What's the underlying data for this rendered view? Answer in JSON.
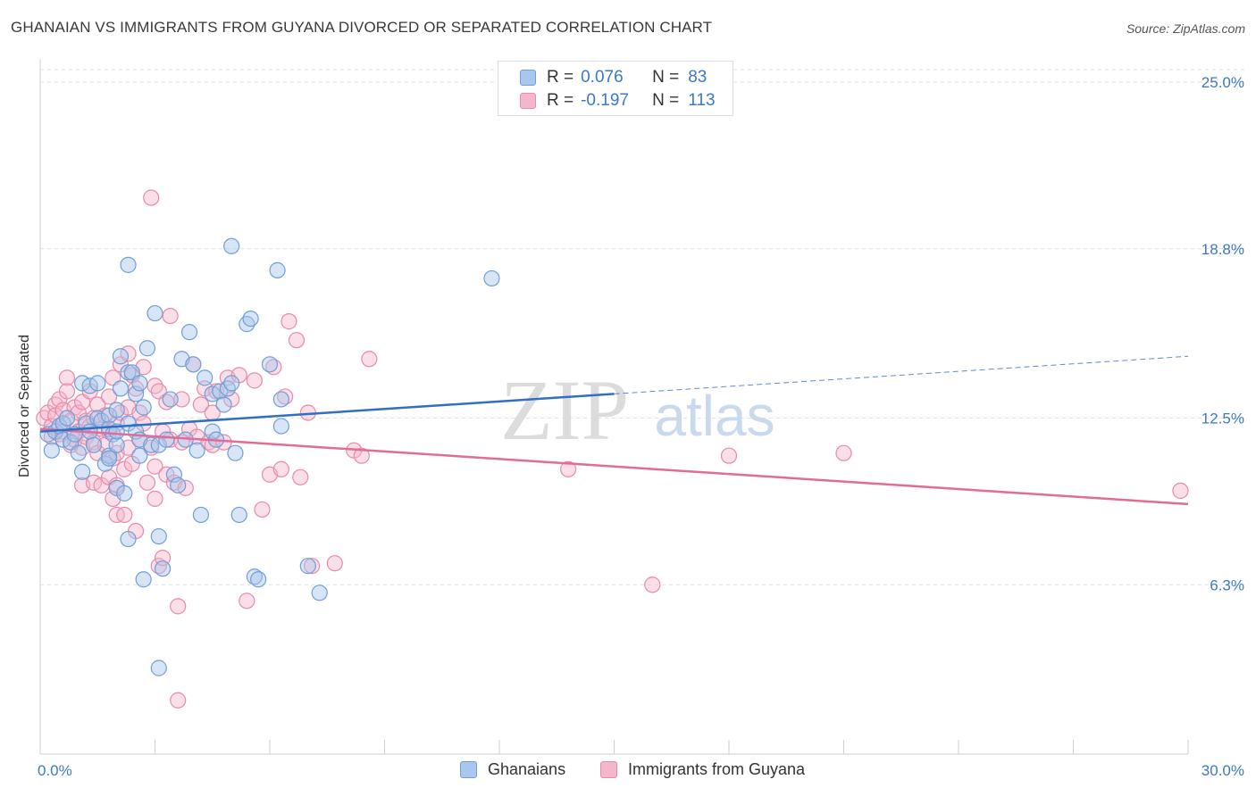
{
  "header": {
    "title": "GHANAIAN VS IMMIGRANTS FROM GUYANA DIVORCED OR SEPARATED CORRELATION CHART",
    "source": "Source: ZipAtlas.com"
  },
  "watermark": {
    "part1": "ZIP",
    "part2": "atlas"
  },
  "colors": {
    "blue_fill": "#a9c6ec",
    "blue_stroke": "#6f9fd8",
    "blue_line": "#2f6fc6",
    "pink_fill": "#f4b6cb",
    "pink_stroke": "#e88aaa",
    "pink_line": "#e26b97",
    "value_text": "#3b78c9"
  },
  "legend_top": [
    {
      "r_label": "R =",
      "r_value": "0.076",
      "n_label": "N =",
      "n_value": "83"
    },
    {
      "r_label": "R =",
      "r_value": "-0.197",
      "n_label": "N =",
      "n_value": "113"
    }
  ],
  "legend_bottom": [
    "Ghanaians",
    "Immigrants from Guyana"
  ],
  "chart_data": {
    "type": "scatter",
    "title": "GHANAIAN VS IMMIGRANTS FROM GUYANA DIVORCED OR SEPARATED CORRELATION CHART",
    "xlabel": "",
    "ylabel": "Divorced or Separated",
    "xlim": [
      0,
      30
    ],
    "ylim": [
      0,
      25.6
    ],
    "x_tick_labels": [
      "0.0%",
      "30.0%"
    ],
    "y_ticks": [
      6.3,
      12.5,
      18.8,
      25.0
    ],
    "y_tick_labels": [
      "6.3%",
      "12.5%",
      "18.8%",
      "25.0%"
    ],
    "grid": "horizontal dashed",
    "legend_position": "top-center",
    "series": [
      {
        "name": "Ghanaians",
        "r": 0.076,
        "n": 83,
        "trend": {
          "x": [
            0,
            15
          ],
          "y": [
            12.0,
            13.4
          ],
          "dashed_extension_to": [
            30,
            14.8
          ]
        },
        "points": [
          [
            0.2,
            11.9
          ],
          [
            0.3,
            11.3
          ],
          [
            0.4,
            12.0
          ],
          [
            0.5,
            12.2
          ],
          [
            0.6,
            11.7
          ],
          [
            0.6,
            12.3
          ],
          [
            0.7,
            12.5
          ],
          [
            0.8,
            11.6
          ],
          [
            0.9,
            11.9
          ],
          [
            1.0,
            11.2
          ],
          [
            1.1,
            13.8
          ],
          [
            1.1,
            10.5
          ],
          [
            1.2,
            12.3
          ],
          [
            1.3,
            12.0
          ],
          [
            1.4,
            11.5
          ],
          [
            1.3,
            13.7
          ],
          [
            1.5,
            13.8
          ],
          [
            1.5,
            12.5
          ],
          [
            1.6,
            12.4
          ],
          [
            1.7,
            10.8
          ],
          [
            1.8,
            12.6
          ],
          [
            1.8,
            12.1
          ],
          [
            1.8,
            11.1
          ],
          [
            1.9,
            11.9
          ],
          [
            2.0,
            11.5
          ],
          [
            2.0,
            12.0
          ],
          [
            2.0,
            12.8
          ],
          [
            1.8,
            11.0
          ],
          [
            2.0,
            9.9
          ],
          [
            2.1,
            14.8
          ],
          [
            2.1,
            13.6
          ],
          [
            2.2,
            9.7
          ],
          [
            2.3,
            14.2
          ],
          [
            2.3,
            12.3
          ],
          [
            2.3,
            8.0
          ],
          [
            2.3,
            18.2
          ],
          [
            2.4,
            14.2
          ],
          [
            2.5,
            13.4
          ],
          [
            2.5,
            12.0
          ],
          [
            2.6,
            13.8
          ],
          [
            2.6,
            11.7
          ],
          [
            2.6,
            11.1
          ],
          [
            2.7,
            12.9
          ],
          [
            2.7,
            6.5
          ],
          [
            2.8,
            15.1
          ],
          [
            2.9,
            11.5
          ],
          [
            3.0,
            16.4
          ],
          [
            3.1,
            11.5
          ],
          [
            3.1,
            8.1
          ],
          [
            3.1,
            3.2
          ],
          [
            3.2,
            6.9
          ],
          [
            3.3,
            11.7
          ],
          [
            3.4,
            13.2
          ],
          [
            3.5,
            10.4
          ],
          [
            3.6,
            10.0
          ],
          [
            3.7,
            14.7
          ],
          [
            3.8,
            11.7
          ],
          [
            3.9,
            15.7
          ],
          [
            4.0,
            14.5
          ],
          [
            4.1,
            11.3
          ],
          [
            4.2,
            8.9
          ],
          [
            4.3,
            14.0
          ],
          [
            4.5,
            13.4
          ],
          [
            4.5,
            12.0
          ],
          [
            4.6,
            11.7
          ],
          [
            4.7,
            13.5
          ],
          [
            4.8,
            13.0
          ],
          [
            4.9,
            13.6
          ],
          [
            5.0,
            13.8
          ],
          [
            5.0,
            18.9
          ],
          [
            5.1,
            11.2
          ],
          [
            5.2,
            8.9
          ],
          [
            5.4,
            16.0
          ],
          [
            5.5,
            16.2
          ],
          [
            5.6,
            6.6
          ],
          [
            5.7,
            6.5
          ],
          [
            6.0,
            14.5
          ],
          [
            6.2,
            18.0
          ],
          [
            6.3,
            13.2
          ],
          [
            6.3,
            12.2
          ],
          [
            7.0,
            7.0
          ],
          [
            7.3,
            6.0
          ],
          [
            11.8,
            17.7
          ]
        ]
      },
      {
        "name": "Immigrants from Guyana",
        "r": -0.197,
        "n": 113,
        "trend": {
          "x": [
            0,
            30
          ],
          "y": [
            12.1,
            9.3
          ]
        },
        "points": [
          [
            0.1,
            12.5
          ],
          [
            0.2,
            12.7
          ],
          [
            0.3,
            11.8
          ],
          [
            0.3,
            12.2
          ],
          [
            0.4,
            13.0
          ],
          [
            0.4,
            12.6
          ],
          [
            0.5,
            11.9
          ],
          [
            0.5,
            13.2
          ],
          [
            0.6,
            12.8
          ],
          [
            0.6,
            12.0
          ],
          [
            0.7,
            14.0
          ],
          [
            0.7,
            13.5
          ],
          [
            0.8,
            12.4
          ],
          [
            0.8,
            11.5
          ],
          [
            0.9,
            12.9
          ],
          [
            0.9,
            11.7
          ],
          [
            1.0,
            12.7
          ],
          [
            1.0,
            12.0
          ],
          [
            1.1,
            13.1
          ],
          [
            1.1,
            11.4
          ],
          [
            1.1,
            10.0
          ],
          [
            1.2,
            12.4
          ],
          [
            1.2,
            11.8
          ],
          [
            1.3,
            12.2
          ],
          [
            1.3,
            13.5
          ],
          [
            1.4,
            11.6
          ],
          [
            1.4,
            10.1
          ],
          [
            1.4,
            12.5
          ],
          [
            1.5,
            13.0
          ],
          [
            1.5,
            11.2
          ],
          [
            1.6,
            12.1
          ],
          [
            1.6,
            10.0
          ],
          [
            1.7,
            12.6
          ],
          [
            1.7,
            11.5
          ],
          [
            1.8,
            13.3
          ],
          [
            1.8,
            12.0
          ],
          [
            1.8,
            10.3
          ],
          [
            1.9,
            11.0
          ],
          [
            1.9,
            9.5
          ],
          [
            1.9,
            14.0
          ],
          [
            2.0,
            12.3
          ],
          [
            2.0,
            11.2
          ],
          [
            2.0,
            10.0
          ],
          [
            2.0,
            8.9
          ],
          [
            2.1,
            14.5
          ],
          [
            2.1,
            12.7
          ],
          [
            2.2,
            10.6
          ],
          [
            2.2,
            8.9
          ],
          [
            2.3,
            14.9
          ],
          [
            2.3,
            12.9
          ],
          [
            2.3,
            11.4
          ],
          [
            2.4,
            10.8
          ],
          [
            2.4,
            14.1
          ],
          [
            2.5,
            13.6
          ],
          [
            2.5,
            8.3
          ],
          [
            2.6,
            12.7
          ],
          [
            2.6,
            11.7
          ],
          [
            2.7,
            14.4
          ],
          [
            2.7,
            12.3
          ],
          [
            2.8,
            10.1
          ],
          [
            2.9,
            20.7
          ],
          [
            2.9,
            11.4
          ],
          [
            3.0,
            13.7
          ],
          [
            3.0,
            10.7
          ],
          [
            3.0,
            9.5
          ],
          [
            3.1,
            13.5
          ],
          [
            3.1,
            7.0
          ],
          [
            3.2,
            12.0
          ],
          [
            3.2,
            7.3
          ],
          [
            3.3,
            13.1
          ],
          [
            3.3,
            10.4
          ],
          [
            3.4,
            16.3
          ],
          [
            3.4,
            11.7
          ],
          [
            3.5,
            10.1
          ],
          [
            3.6,
            5.5
          ],
          [
            3.6,
            2.0
          ],
          [
            3.7,
            13.2
          ],
          [
            3.7,
            11.6
          ],
          [
            3.8,
            9.9
          ],
          [
            3.9,
            12.1
          ],
          [
            4.0,
            14.5
          ],
          [
            4.1,
            11.8
          ],
          [
            4.2,
            13.0
          ],
          [
            4.3,
            13.6
          ],
          [
            4.4,
            11.6
          ],
          [
            4.5,
            12.7
          ],
          [
            4.5,
            11.5
          ],
          [
            4.6,
            13.5
          ],
          [
            4.8,
            11.6
          ],
          [
            4.9,
            14.0
          ],
          [
            5.0,
            13.2
          ],
          [
            5.2,
            14.1
          ],
          [
            5.4,
            5.7
          ],
          [
            5.6,
            13.9
          ],
          [
            5.8,
            9.1
          ],
          [
            6.0,
            10.4
          ],
          [
            6.1,
            14.4
          ],
          [
            6.3,
            10.6
          ],
          [
            6.4,
            13.3
          ],
          [
            6.5,
            16.1
          ],
          [
            6.7,
            15.4
          ],
          [
            6.8,
            10.3
          ],
          [
            7.0,
            12.7
          ],
          [
            7.1,
            7.0
          ],
          [
            7.7,
            7.1
          ],
          [
            8.2,
            11.3
          ],
          [
            8.4,
            11.1
          ],
          [
            8.6,
            14.7
          ],
          [
            13.8,
            10.6
          ],
          [
            16.0,
            6.3
          ],
          [
            18.0,
            11.1
          ],
          [
            21.0,
            11.2
          ],
          [
            29.8,
            9.8
          ]
        ]
      }
    ]
  }
}
